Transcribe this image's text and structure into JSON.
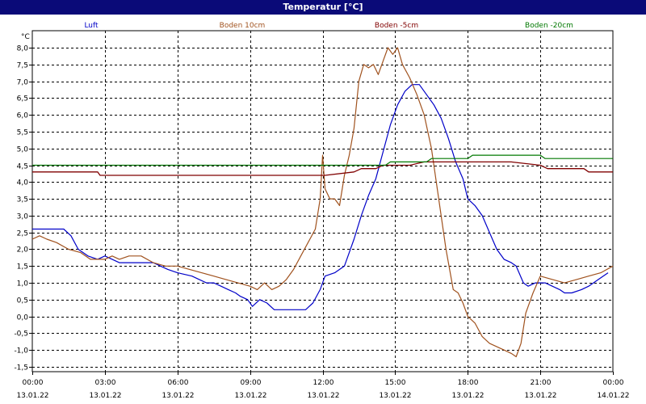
{
  "title": "Temperatur [°C]",
  "chart_data": {
    "type": "line",
    "title": "Temperatur [°C]",
    "ylabel": "°C",
    "xlabel": "",
    "ylim": [
      -1.5,
      8.0
    ],
    "y_ticks": [
      "8,0",
      "7,5",
      "7,0",
      "6,5",
      "6,0",
      "5,5",
      "5,0",
      "4,5",
      "4,0",
      "3,5",
      "3,0",
      "2,5",
      "2,0",
      "1,5",
      "1,0",
      "0,5",
      "0,0",
      "-0,5",
      "-1,0",
      "-1,5"
    ],
    "y_tick_values": [
      8.0,
      7.5,
      7.0,
      6.5,
      6.0,
      5.5,
      5.0,
      4.5,
      4.0,
      3.5,
      3.0,
      2.5,
      2.0,
      1.5,
      1.0,
      0.5,
      0.0,
      -0.5,
      -1.0,
      -1.5
    ],
    "xlim_hours": [
      0,
      24
    ],
    "x_ticks": [
      {
        "hour": 0,
        "time": "00:00",
        "date": "13.01.22"
      },
      {
        "hour": 3,
        "time": "03:00",
        "date": "13.01.22"
      },
      {
        "hour": 6,
        "time": "06:00",
        "date": "13.01.22"
      },
      {
        "hour": 9,
        "time": "09:00",
        "date": "13.01.22"
      },
      {
        "hour": 12,
        "time": "12:00",
        "date": "13.01.22"
      },
      {
        "hour": 15,
        "time": "15:00",
        "date": "13.01.22"
      },
      {
        "hour": 18,
        "time": "18:00",
        "date": "13.01.22"
      },
      {
        "hour": 21,
        "time": "21:00",
        "date": "13.01.22"
      },
      {
        "hour": 24,
        "time": "00:00",
        "date": "14.01.22"
      }
    ],
    "grid": true,
    "legend_position": "top",
    "series": [
      {
        "name": "Luft",
        "color": "#0000c8",
        "x": [
          0,
          1.3,
          1.6,
          1.9,
          2.3,
          2.7,
          3.0,
          3.3,
          3.6,
          5.0,
          5.3,
          5.6,
          6.0,
          6.6,
          6.9,
          7.2,
          7.5,
          7.8,
          8.1,
          8.4,
          8.6,
          8.9,
          9.1,
          9.4,
          9.7,
          10.0,
          11.3,
          11.6,
          11.9,
          12.1,
          12.5,
          12.9,
          13.1,
          13.3,
          13.6,
          13.9,
          14.2,
          14.5,
          14.8,
          15.1,
          15.4,
          15.7,
          16.0,
          16.3,
          16.6,
          16.9,
          17.2,
          17.5,
          17.8,
          18.0,
          18.3,
          18.6,
          18.9,
          19.2,
          19.5,
          19.8,
          20.0,
          20.3,
          20.5,
          20.8,
          21.2,
          21.8,
          22.0,
          22.3,
          22.7,
          23.0,
          23.4,
          23.8
        ],
        "y": [
          2.6,
          2.6,
          2.4,
          2.0,
          1.8,
          1.7,
          1.8,
          1.7,
          1.6,
          1.6,
          1.5,
          1.4,
          1.3,
          1.2,
          1.1,
          1.0,
          1.0,
          0.9,
          0.8,
          0.7,
          0.6,
          0.5,
          0.3,
          0.5,
          0.4,
          0.2,
          0.2,
          0.4,
          0.8,
          1.2,
          1.3,
          1.5,
          1.9,
          2.3,
          3.0,
          3.6,
          4.1,
          4.9,
          5.7,
          6.3,
          6.7,
          6.9,
          6.9,
          6.6,
          6.3,
          5.9,
          5.3,
          4.6,
          4.1,
          3.5,
          3.3,
          3.0,
          2.5,
          2.0,
          1.7,
          1.6,
          1.5,
          1.0,
          0.9,
          1.0,
          1.0,
          0.8,
          0.7,
          0.7,
          0.8,
          0.9,
          1.1,
          1.3
        ]
      },
      {
        "name": "Boden 10cm",
        "color": "#a0521e",
        "x": [
          0,
          0.3,
          0.6,
          1.0,
          1.5,
          2.0,
          2.4,
          2.7,
          3.0,
          3.3,
          3.6,
          4.0,
          4.5,
          5.0,
          5.5,
          6.0,
          6.5,
          7.0,
          7.5,
          8.0,
          8.5,
          9.0,
          9.3,
          9.6,
          9.9,
          10.2,
          10.5,
          10.8,
          11.1,
          11.4,
          11.7,
          11.9,
          12.0,
          12.1,
          12.3,
          12.5,
          12.7,
          12.9,
          13.1,
          13.3,
          13.5,
          13.7,
          13.9,
          14.1,
          14.3,
          14.5,
          14.7,
          14.9,
          15.1,
          15.3,
          15.6,
          15.9,
          16.2,
          16.5,
          16.8,
          17.1,
          17.4,
          17.6,
          17.8,
          18.0,
          18.3,
          18.6,
          18.9,
          19.2,
          19.5,
          19.8,
          20.0,
          20.2,
          20.4,
          20.7,
          21.0,
          21.5,
          22.0,
          22.5,
          23.0,
          23.5,
          24.0
        ],
        "y": [
          2.3,
          2.4,
          2.3,
          2.2,
          2.0,
          1.9,
          1.7,
          1.7,
          1.7,
          1.8,
          1.7,
          1.8,
          1.8,
          1.6,
          1.5,
          1.5,
          1.4,
          1.3,
          1.2,
          1.1,
          1.0,
          0.9,
          0.8,
          1.0,
          0.8,
          0.9,
          1.1,
          1.4,
          1.8,
          2.2,
          2.6,
          3.5,
          4.8,
          3.8,
          3.5,
          3.5,
          3.3,
          4.2,
          4.8,
          5.6,
          7.0,
          7.5,
          7.4,
          7.5,
          7.2,
          7.6,
          8.0,
          7.8,
          8.0,
          7.5,
          7.1,
          6.6,
          6.0,
          5.0,
          3.5,
          2.0,
          0.8,
          0.7,
          0.4,
          0.0,
          -0.2,
          -0.6,
          -0.8,
          -0.9,
          -1.0,
          -1.1,
          -1.2,
          -0.8,
          0.1,
          0.7,
          1.2,
          1.1,
          1.0,
          1.1,
          1.2,
          1.3,
          1.5
        ]
      },
      {
        "name": "Boden -5cm",
        "color": "#800000",
        "x": [
          0,
          2.7,
          2.8,
          12.1,
          13.3,
          13.6,
          14.2,
          14.5,
          15.0,
          15.6,
          16.2,
          18.0,
          19.8,
          21.0,
          21.3,
          22.0,
          22.8,
          23.0,
          24.0
        ],
        "y": [
          4.3,
          4.3,
          4.2,
          4.2,
          4.3,
          4.4,
          4.4,
          4.5,
          4.5,
          4.5,
          4.6,
          4.6,
          4.6,
          4.5,
          4.4,
          4.4,
          4.4,
          4.3,
          4.3
        ],
        "line_width": 1.3
      },
      {
        "name": "Boden -20cm",
        "color": "#007800",
        "x": [
          0,
          14.6,
          14.8,
          16.3,
          16.5,
          18.0,
          18.2,
          21.0,
          21.2,
          24.0
        ],
        "y": [
          4.5,
          4.5,
          4.6,
          4.6,
          4.7,
          4.7,
          4.8,
          4.8,
          4.7,
          4.7
        ]
      }
    ]
  }
}
